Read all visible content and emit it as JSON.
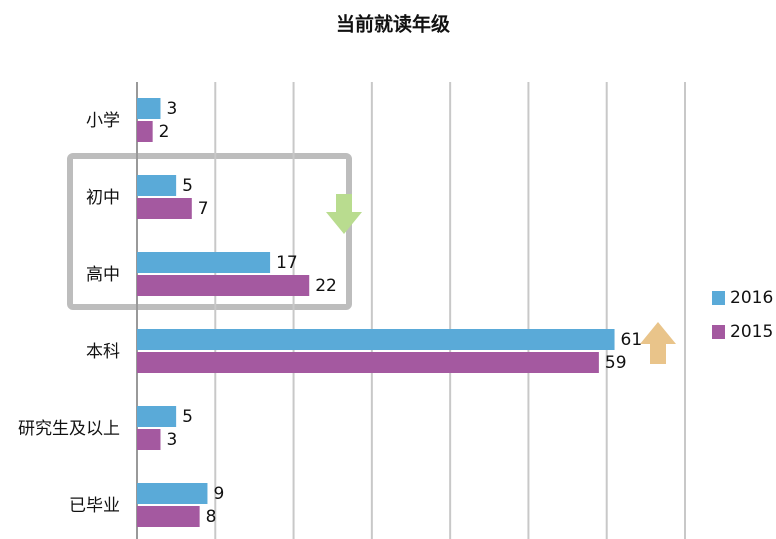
{
  "chart_data": {
    "type": "bar",
    "orientation": "horizontal",
    "title": "当前就读年级",
    "categories": [
      "小学",
      "初中",
      "高中",
      "本科",
      "研究生及以上",
      "已毕业"
    ],
    "series": [
      {
        "name": "2016",
        "color": "#5aaad8",
        "values": [
          3,
          5,
          17,
          61,
          5,
          9
        ]
      },
      {
        "name": "2015",
        "color": "#a459a0",
        "values": [
          2,
          7,
          22,
          59,
          3,
          8
        ]
      }
    ],
    "xlim": [
      0,
      70
    ],
    "xticks": [
      0,
      10,
      20,
      30,
      40,
      50,
      60,
      70
    ],
    "grid": true,
    "legend": "right"
  }
}
